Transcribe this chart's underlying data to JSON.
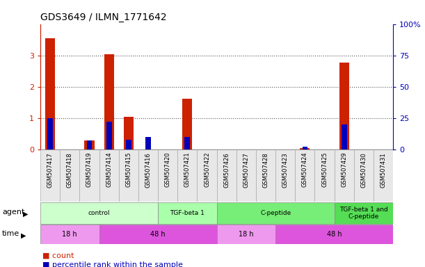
{
  "title": "GDS3649 / ILMN_1771642",
  "samples": [
    "GSM507417",
    "GSM507418",
    "GSM507419",
    "GSM507414",
    "GSM507415",
    "GSM507416",
    "GSM507420",
    "GSM507421",
    "GSM507422",
    "GSM507426",
    "GSM507427",
    "GSM507428",
    "GSM507423",
    "GSM507424",
    "GSM507425",
    "GSM507429",
    "GSM507430",
    "GSM507431"
  ],
  "count_values": [
    3.55,
    0.0,
    0.28,
    3.03,
    1.05,
    0.0,
    0.0,
    1.62,
    0.0,
    0.0,
    0.0,
    0.0,
    0.0,
    0.04,
    0.0,
    2.78,
    0.0,
    0.0
  ],
  "percentile_values": [
    25.0,
    0.0,
    7.0,
    22.0,
    8.0,
    10.0,
    0.0,
    10.0,
    0.0,
    0.0,
    0.0,
    0.0,
    0.0,
    2.0,
    0.0,
    20.0,
    0.0,
    0.0
  ],
  "ylim_left": [
    0,
    4
  ],
  "ylim_right": [
    0,
    100
  ],
  "yticks_left": [
    0,
    1,
    2,
    3
  ],
  "yticks_right": [
    0,
    25,
    50,
    75,
    100
  ],
  "ytick_labels_right": [
    "0",
    "25",
    "50",
    "75",
    "100%"
  ],
  "bar_color_count": "#cc2200",
  "bar_color_percentile": "#0000bb",
  "agent_groups": [
    {
      "label": "control",
      "start": 0,
      "end": 6,
      "color": "#ccffcc"
    },
    {
      "label": "TGF-beta 1",
      "start": 6,
      "end": 9,
      "color": "#aaffaa"
    },
    {
      "label": "C-peptide",
      "start": 9,
      "end": 15,
      "color": "#77ee77"
    },
    {
      "label": "TGF-beta 1 and\nC-peptide",
      "start": 15,
      "end": 18,
      "color": "#55dd55"
    }
  ],
  "time_groups": [
    {
      "label": "18 h",
      "start": 0,
      "end": 3,
      "color": "#ee99ee"
    },
    {
      "label": "48 h",
      "start": 3,
      "end": 9,
      "color": "#dd55dd"
    },
    {
      "label": "18 h",
      "start": 9,
      "end": 12,
      "color": "#ee99ee"
    },
    {
      "label": "48 h",
      "start": 12,
      "end": 18,
      "color": "#dd55dd"
    }
  ],
  "grid_color": "#555555",
  "bg_color": "#ffffff",
  "plot_bg_color": "#ffffff",
  "left_tick_color": "#cc2200",
  "right_tick_color": "#0000bb"
}
